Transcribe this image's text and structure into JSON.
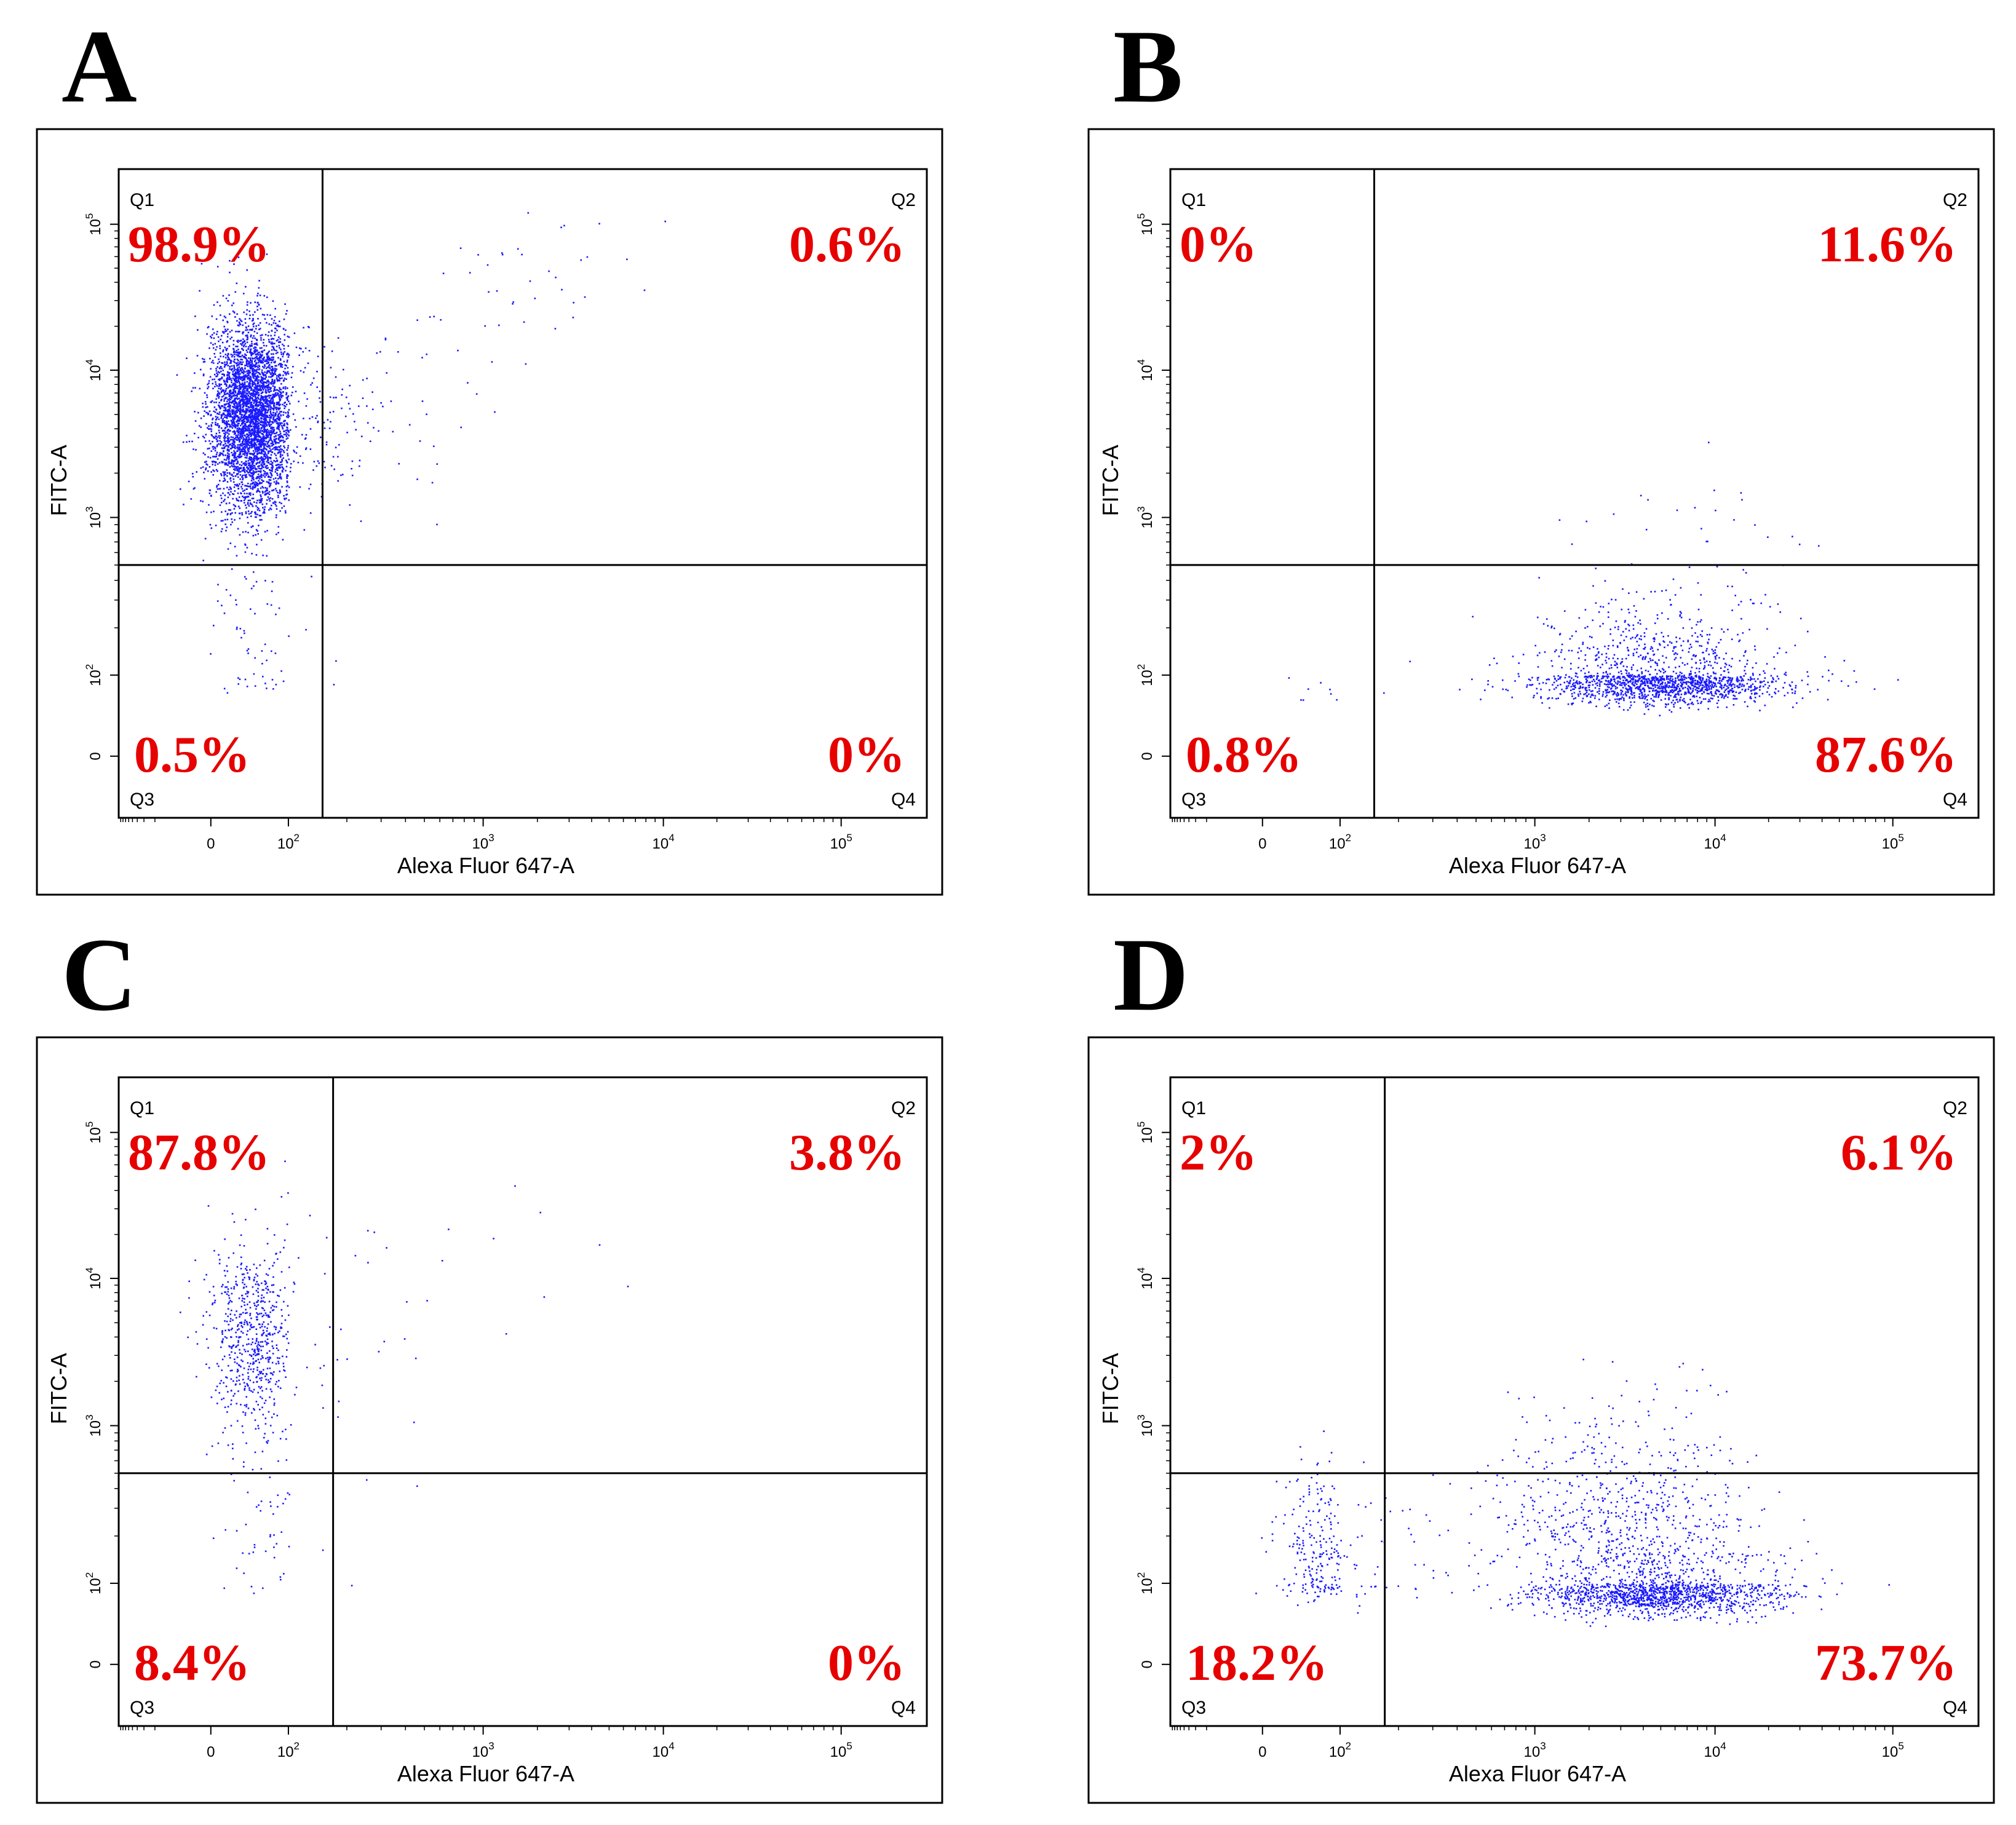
{
  "chart_data": [
    {
      "type": "scatter",
      "panel": "A",
      "xlabel": "Alexa Fluor 647-A",
      "ylabel": "FITC-A",
      "x_scale": "biexponential",
      "y_scale": "biexponential",
      "x_ticks": [
        "0",
        "10",
        "10",
        "10",
        "10"
      ],
      "x_tick_exps": [
        "",
        "2",
        "3",
        "4",
        "5"
      ],
      "y_ticks": [
        "0",
        "10",
        "10",
        "10",
        "10"
      ],
      "y_tick_exps": [
        "",
        "2",
        "3",
        "4",
        "5"
      ],
      "gate": {
        "x": 150,
        "y": 500
      },
      "quadrants": [
        {
          "name": "Q1",
          "percent": "98.9%"
        },
        {
          "name": "Q2",
          "percent": "0.6%"
        },
        {
          "name": "Q3",
          "percent": "0.5%"
        },
        {
          "name": "Q4",
          "percent": "0%"
        }
      ],
      "populations": [
        {
          "x_center": 10,
          "y_center": 5000,
          "count": 4200
        },
        {
          "x_center": 1500,
          "y_center": 40000,
          "count": 40
        },
        {
          "x_center": 10,
          "y_center": 150,
          "count": 60
        }
      ]
    },
    {
      "type": "scatter",
      "panel": "B",
      "xlabel": "Alexa Fluor 647-A",
      "ylabel": "FITC-A",
      "x_scale": "biexponential",
      "y_scale": "biexponential",
      "x_ticks": [
        "0",
        "10",
        "10",
        "10",
        "10"
      ],
      "x_tick_exps": [
        "",
        "2",
        "3",
        "4",
        "5"
      ],
      "y_ticks": [
        "0",
        "10",
        "10",
        "10",
        "10"
      ],
      "y_tick_exps": [
        "",
        "2",
        "3",
        "4",
        "5"
      ],
      "gate": {
        "x": 150,
        "y": 500
      },
      "quadrants": [
        {
          "name": "Q1",
          "percent": "0%"
        },
        {
          "name": "Q2",
          "percent": "11.6%"
        },
        {
          "name": "Q3",
          "percent": "0.8%"
        },
        {
          "name": "Q4",
          "percent": "87.6%"
        }
      ],
      "populations": [
        {
          "x_center": 5000,
          "y_center": 70,
          "count": 1700
        },
        {
          "x_center": 10000,
          "y_center": 700,
          "count": 30
        },
        {
          "x_center": 60,
          "y_center": 40,
          "count": 10
        }
      ]
    },
    {
      "type": "scatter",
      "panel": "C",
      "xlabel": "Alexa Fluor 647-A",
      "ylabel": "FITC-A",
      "x_scale": "biexponential",
      "y_scale": "biexponential",
      "x_ticks": [
        "0",
        "10",
        "10",
        "10",
        "10"
      ],
      "x_tick_exps": [
        "",
        "2",
        "3",
        "4",
        "5"
      ],
      "y_ticks": [
        "0",
        "10",
        "10",
        "10",
        "10"
      ],
      "y_tick_exps": [
        "",
        "2",
        "3",
        "4",
        "5"
      ],
      "gate": {
        "x": 170,
        "y": 500
      },
      "quadrants": [
        {
          "name": "Q1",
          "percent": "87.8%"
        },
        {
          "name": "Q2",
          "percent": "3.8%"
        },
        {
          "name": "Q3",
          "percent": "8.4%"
        },
        {
          "name": "Q4",
          "percent": "0%"
        }
      ],
      "populations": [
        {
          "x_center": 10,
          "y_center": 4000,
          "count": 650
        },
        {
          "x_center": 400,
          "y_center": 15000,
          "count": 25
        },
        {
          "x_center": 20,
          "y_center": 250,
          "count": 60
        }
      ]
    },
    {
      "type": "scatter",
      "panel": "D",
      "xlabel": "Alexa Fluor 647-A",
      "ylabel": "FITC-A",
      "x_scale": "biexponential",
      "y_scale": "biexponential",
      "x_ticks": [
        "0",
        "10",
        "10",
        "10",
        "10"
      ],
      "x_tick_exps": [
        "",
        "2",
        "3",
        "4",
        "5"
      ],
      "y_ticks": [
        "0",
        "10",
        "10",
        "10",
        "10"
      ],
      "y_tick_exps": [
        "",
        "2",
        "3",
        "4",
        "5"
      ],
      "gate": {
        "x": 170,
        "y": 500
      },
      "quadrants": [
        {
          "name": "Q1",
          "percent": "2%"
        },
        {
          "name": "Q2",
          "percent": "6.1%"
        },
        {
          "name": "Q3",
          "percent": "18.2%"
        },
        {
          "name": "Q4",
          "percent": "73.7%"
        }
      ],
      "populations": [
        {
          "x_center": 5000,
          "y_center": 60,
          "count": 1500
        },
        {
          "x_center": 3000,
          "y_center": 250,
          "count": 500
        },
        {
          "x_center": 30,
          "y_center": 150,
          "count": 280
        },
        {
          "x_center": 3000,
          "y_center": 800,
          "count": 90
        }
      ]
    }
  ],
  "colors": {
    "dots": "#1a1aff",
    "percent_text": "#e60000",
    "frame": "#000000"
  }
}
